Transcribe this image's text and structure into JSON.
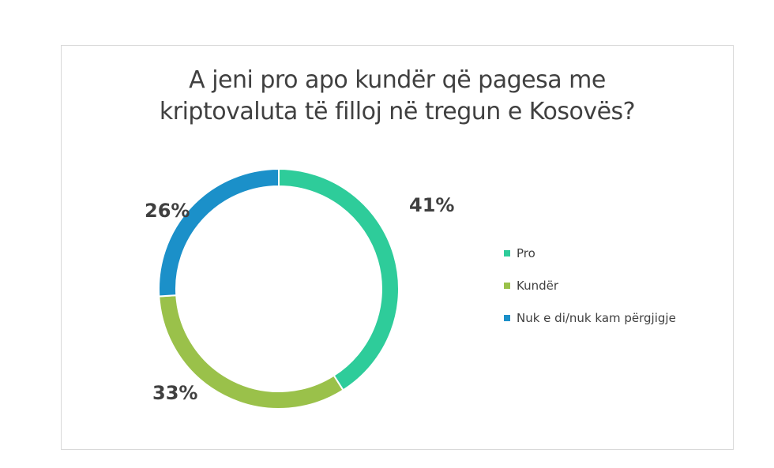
{
  "chart_data": {
    "type": "pie",
    "variant": "donut",
    "title": "A jeni pro apo kundër që pagesa me kriptovaluta të filloj në tregun e Kosovës?",
    "title_lines": [
      "A jeni pro apo kundër që pagesa me",
      "kriptovaluta të filloj  në tregun e Kosovës?"
    ],
    "categories": [
      "Pro",
      "Kundër",
      "Nuk e di/nuk kam përgjigje"
    ],
    "values": [
      41,
      33,
      26
    ],
    "data_labels": [
      "41%",
      "33%",
      "26%"
    ],
    "colors": [
      "#2ecc9a",
      "#9ac14a",
      "#1b90c9"
    ],
    "legend_placement": "right"
  }
}
